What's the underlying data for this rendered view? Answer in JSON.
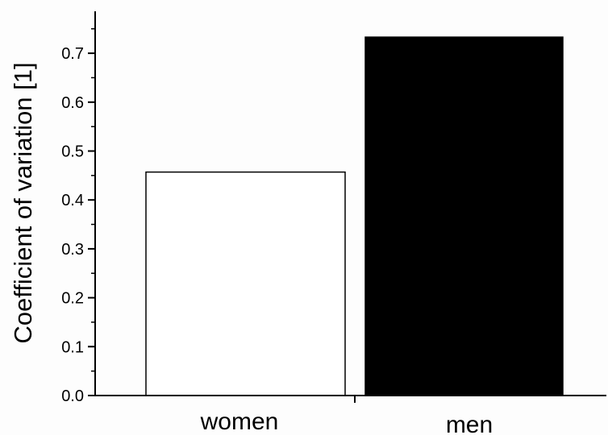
{
  "chart_data": {
    "type": "bar",
    "title": "",
    "xlabel": "",
    "ylabel": "Coefficient of variation [1]",
    "categories": [
      "women",
      "men"
    ],
    "values": [
      0.457,
      0.733
    ],
    "ylim": [
      0,
      0.8
    ],
    "yticks": [
      "0.0",
      "0.1",
      "0.2",
      "0.3",
      "0.4",
      "0.5",
      "0.6",
      "0.7"
    ],
    "bar_fill_colors": [
      "#ffffff",
      "#000000"
    ],
    "bar_edge_color": "#000000",
    "grid": false,
    "legend": "none"
  }
}
